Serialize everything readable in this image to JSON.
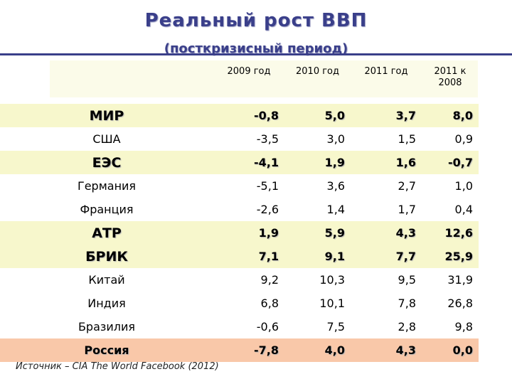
{
  "slide": {
    "title": "Реальный рост ВВП",
    "subtitle": "(посткризисный период)",
    "source": "Источник – CIA The World Facebook (2012)"
  },
  "table": {
    "headers": [
      "2009 год",
      "2010 год",
      "2011 год",
      "2011 к 2008"
    ],
    "rows": [
      {
        "name": "МИР",
        "kind": "region",
        "bg": "yellow",
        "values": [
          "-0,8",
          "5,0",
          "3,7",
          "8,0"
        ]
      },
      {
        "name": "США",
        "kind": "country",
        "bg": "white",
        "values": [
          "-3,5",
          "3,0",
          "1,5",
          "0,9"
        ]
      },
      {
        "name": "ЕЭС",
        "kind": "region",
        "bg": "yellow",
        "values": [
          "-4,1",
          "1,9",
          "1,6",
          "-0,7"
        ]
      },
      {
        "name": "Германия",
        "kind": "country",
        "bg": "white",
        "values": [
          "-5,1",
          "3,6",
          "2,7",
          "1,0"
        ]
      },
      {
        "name": "Франция",
        "kind": "country",
        "bg": "white",
        "values": [
          "-2,6",
          "1,4",
          "1,7",
          "0,4"
        ]
      },
      {
        "name": "АТР",
        "kind": "region",
        "bg": "yellow",
        "values": [
          "1,9",
          "5,9",
          "4,3",
          "12,6"
        ]
      },
      {
        "name": "БРИК",
        "kind": "region",
        "bg": "yellow",
        "values": [
          "7,1",
          "9,1",
          "7,7",
          "25,9"
        ]
      },
      {
        "name": "Китай",
        "kind": "country",
        "bg": "white",
        "values": [
          "9,2",
          "10,3",
          "9,5",
          "31,9"
        ]
      },
      {
        "name": "Индия",
        "kind": "country",
        "bg": "white",
        "values": [
          "6,8",
          "10,1",
          "7,8",
          "26,8"
        ]
      },
      {
        "name": "Бразилия",
        "kind": "country",
        "bg": "white",
        "values": [
          "-0,6",
          "7,5",
          "2,8",
          "9,8"
        ]
      },
      {
        "name": "Россия",
        "kind": "russia",
        "bg": "peach",
        "values": [
          "-7,8",
          "4,0",
          "4,3",
          "0,0"
        ]
      }
    ]
  },
  "colors": {
    "title": "#3a3f8a",
    "region_row_bg": "#f7f7cc",
    "header_bg": "#fbfbe9",
    "russia_row_bg": "#f9c8a9"
  }
}
